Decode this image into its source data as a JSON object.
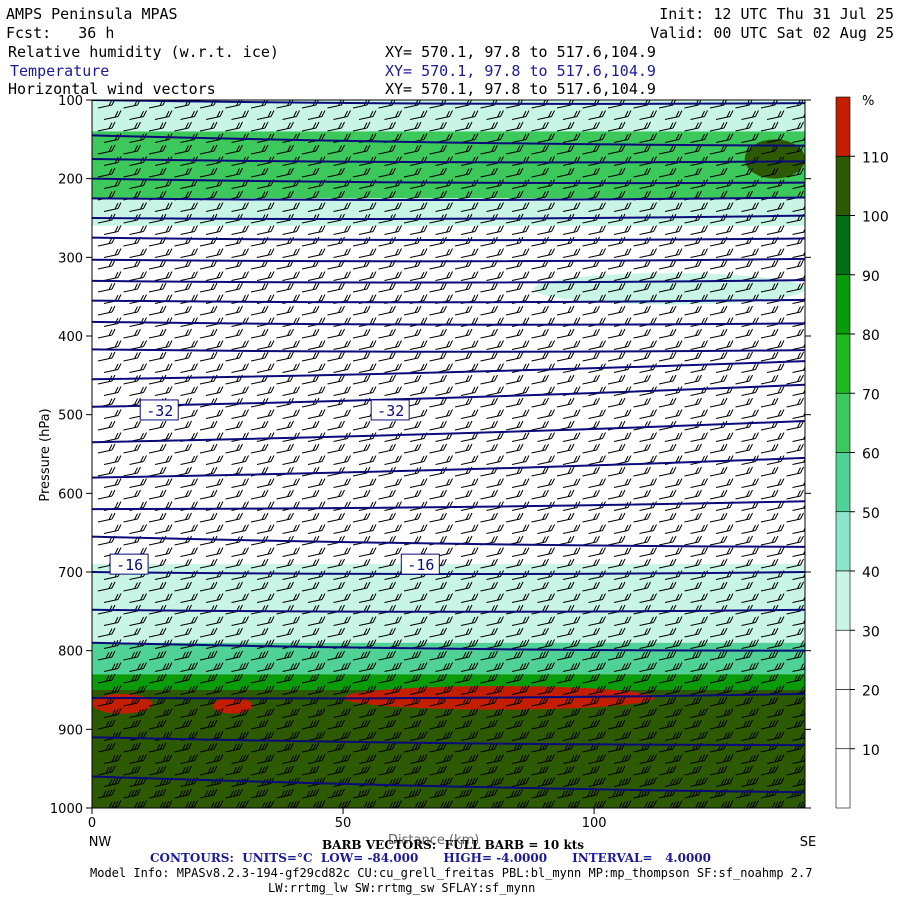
{
  "header": {
    "model": "AMPS Peninsula MPAS",
    "fcst_label": "Fcst:",
    "fcst_value": "36 h",
    "init": "Init: 12 UTC Thu 31 Jul 25",
    "valid": "Valid: 00 UTC Sat 02 Aug 25",
    "field1": "Relative humidity (w.r.t. ice)",
    "field2": "Temperature",
    "field3": "Horizontal wind vectors",
    "xy1": "XY= 570.1, 97.8 to 517.6,104.9",
    "xy2": "XY= 570.1, 97.8 to 517.6,104.9",
    "xy3": "XY= 570.1, 97.8 to 517.6,104.9"
  },
  "footer": {
    "barb": "BARB VECTORS:  FULL BARB = 10 kts",
    "xlabel_overlap": "Distance (km)",
    "contours": "CONTOURS:  UNITS=°C  LOW= -84.000      HIGH= -4.0000      INTERVAL=   4.0000",
    "model_info": "Model Info: MPASv8.2.3-194-gf29cd82c CU:cu_grell_freitas PBL:bl_mynn MP:mp_thompson SF:sf_noahmp 2.7",
    "model_info2": "LW:rrtmg_lw SW:rrtmg_sw SFLAY:sf_mynn"
  },
  "colors": {
    "c0_30": "#ffffff",
    "c30_40": "#c8f5e6",
    "c40_50": "#8ce6cd",
    "c50_60": "#50d296",
    "c60_70": "#3cc85a",
    "c70_80": "#1eb91e",
    "c80_90": "#0a9b0a",
    "c90_100": "#006e14",
    "c100_110": "#2d5a00",
    "c110_plus": "#c31e00",
    "contour": "#0a0a7a"
  },
  "chart_data": {
    "type": "heatmap",
    "title": "",
    "xlabel": "Distance (km)",
    "ylabel": "Pressure (hPa)",
    "x_range": [
      0,
      142
    ],
    "y_range": [
      1000,
      100
    ],
    "x_ticks": [
      0,
      50,
      100
    ],
    "y_ticks": [
      100,
      200,
      300,
      400,
      500,
      600,
      700,
      800,
      900,
      1000
    ],
    "x_endpoints": {
      "left": "NW",
      "right": "SE"
    },
    "colorbar": {
      "unit": "%",
      "levels": [
        10,
        20,
        30,
        40,
        50,
        60,
        70,
        80,
        90,
        100,
        110
      ]
    },
    "rh_bands": [
      {
        "p_top": 100,
        "p_bot": 140,
        "rh": 30
      },
      {
        "p_top": 140,
        "p_bot": 225,
        "rh": 60
      },
      {
        "p_top": 225,
        "p_bot": 260,
        "rh": 35
      },
      {
        "p_top": 260,
        "p_bot": 330,
        "rh": 20
      },
      {
        "p_top": 330,
        "p_bot": 690,
        "rh": 15
      },
      {
        "p_top": 690,
        "p_bot": 790,
        "rh": 35
      },
      {
        "p_top": 790,
        "p_bot": 830,
        "rh": 55
      },
      {
        "p_top": 830,
        "p_bot": 850,
        "rh": 85
      },
      {
        "p_top": 850,
        "p_bot": 1000,
        "rh": 100
      }
    ],
    "rh_patches": [
      {
        "x": [
          0,
          12
        ],
        "p": [
          855,
          880
        ],
        "rh": 115
      },
      {
        "x": [
          24,
          32
        ],
        "p": [
          860,
          880
        ],
        "rh": 115
      },
      {
        "x": [
          50,
          112
        ],
        "p": [
          845,
          875
        ],
        "rh": 115
      },
      {
        "x": [
          88,
          142
        ],
        "p": [
          320,
          360
        ],
        "rh": 35
      },
      {
        "x": [
          130,
          142
        ],
        "p": [
          150,
          200
        ],
        "rh": 105
      }
    ],
    "temperature_contours": {
      "units": "°C",
      "interval": 4,
      "low": -84,
      "high": -4,
      "lines": [
        {
          "p": [
            100,
            104
          ]
        },
        {
          "p": [
            145,
            158
          ]
        },
        {
          "p": [
            175,
            178
          ]
        },
        {
          "p": [
            200,
            205
          ]
        },
        {
          "p": [
            225,
            224
          ]
        },
        {
          "p": [
            250,
            247
          ]
        },
        {
          "p": [
            275,
            276
          ]
        },
        {
          "p": [
            303,
            302
          ]
        },
        {
          "p": [
            330,
            329
          ]
        },
        {
          "p": [
            355,
            354
          ]
        },
        {
          "p": [
            382,
            384
          ]
        },
        {
          "p": [
            417,
            418
          ]
        },
        {
          "p": [
            455,
            432
          ]
        },
        {
          "p": [
            490,
            462
          ]
        },
        {
          "p": [
            535,
            508
          ]
        },
        {
          "p": [
            580,
            555
          ]
        },
        {
          "p": [
            620,
            610
          ]
        },
        {
          "p": [
            655,
            668
          ]
        },
        {
          "p": [
            700,
            700
          ]
        },
        {
          "p": [
            748,
            748
          ]
        },
        {
          "p": [
            790,
            800
          ]
        },
        {
          "p": [
            860,
            855
          ]
        },
        {
          "p": [
            910,
            920
          ]
        },
        {
          "p": [
            960,
            980
          ]
        }
      ],
      "labels": [
        {
          "text": "-32",
          "x": 10,
          "p": 494
        },
        {
          "text": "-32",
          "x": 56,
          "p": 494
        },
        {
          "text": "-16",
          "x": 4,
          "p": 690
        },
        {
          "text": "-16",
          "x": 62,
          "p": 690
        }
      ]
    },
    "wind_barbs": {
      "note": "barbs drawn on grid",
      "full_barb_kts": 10
    }
  }
}
